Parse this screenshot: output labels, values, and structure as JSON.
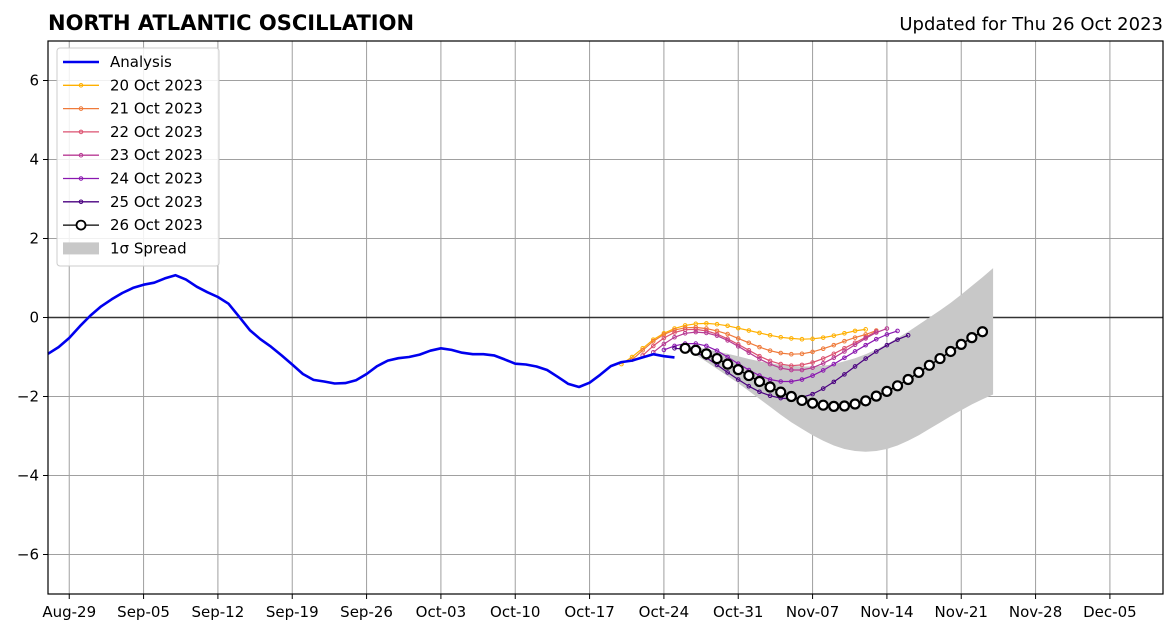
{
  "chart_data": {
    "type": "line",
    "title": "NORTH ATLANTIC OSCILLATION",
    "subtitle": "Updated for Thu 26 Oct 2023",
    "xlabel": "",
    "ylabel": "",
    "x_range": [
      "2023-08-27",
      "2023-12-10"
    ],
    "ylim": [
      -7,
      7
    ],
    "grid": true,
    "legend_position": "top-left",
    "x_tick_labels": [
      "Aug-29",
      "Sep-05",
      "Sep-12",
      "Sep-19",
      "Sep-26",
      "Oct-03",
      "Oct-10",
      "Oct-17",
      "Oct-24",
      "Oct-31",
      "Nov-07",
      "Nov-14",
      "Nov-21",
      "Nov-28",
      "Dec-05"
    ],
    "x_tick_dates": [
      "2023-08-29",
      "2023-09-05",
      "2023-09-12",
      "2023-09-19",
      "2023-09-26",
      "2023-10-03",
      "2023-10-10",
      "2023-10-17",
      "2023-10-24",
      "2023-10-31",
      "2023-11-07",
      "2023-11-14",
      "2023-11-21",
      "2023-11-28",
      "2023-12-05"
    ],
    "y_ticks": [
      -6,
      -4,
      -2,
      0,
      2,
      4,
      6
    ],
    "y_tick_labels": [
      "−6",
      "−4",
      "−2",
      "0",
      "2",
      "4",
      "6"
    ],
    "analysis": {
      "name": "Analysis",
      "color": "#0000ee",
      "start": "2023-08-27",
      "values": [
        -0.92,
        -0.75,
        -0.52,
        -0.22,
        0.05,
        0.28,
        0.46,
        0.62,
        0.75,
        0.83,
        0.88,
        0.99,
        1.07,
        0.96,
        0.78,
        0.64,
        0.52,
        0.35,
        0.02,
        -0.32,
        -0.55,
        -0.74,
        -0.96,
        -1.19,
        -1.43,
        -1.58,
        -1.62,
        -1.67,
        -1.66,
        -1.59,
        -1.43,
        -1.23,
        -1.09,
        -1.03,
        -1.0,
        -0.94,
        -0.84,
        -0.78,
        -0.82,
        -0.89,
        -0.93,
        -0.93,
        -0.96,
        -1.06,
        -1.17,
        -1.19,
        -1.24,
        -1.33,
        -1.5,
        -1.68,
        -1.76,
        -1.65,
        -1.45,
        -1.23,
        -1.13,
        -1.09,
        -1.01,
        -0.93,
        -0.98,
        -1.01
      ]
    },
    "forecasts": [
      {
        "name": "20 Oct 2023",
        "color": "#ffb000",
        "start": "2023-10-20",
        "values": [
          -1.18,
          -1.0,
          -0.78,
          -0.56,
          -0.4,
          -0.28,
          -0.2,
          -0.16,
          -0.15,
          -0.17,
          -0.21,
          -0.27,
          -0.33,
          -0.39,
          -0.45,
          -0.5,
          -0.53,
          -0.55,
          -0.54,
          -0.51,
          -0.46,
          -0.4,
          -0.34,
          -0.3
        ]
      },
      {
        "name": "21 Oct 2023",
        "color": "#ef7a3a",
        "start": "2023-10-21",
        "values": [
          -1.07,
          -0.83,
          -0.6,
          -0.43,
          -0.32,
          -0.26,
          -0.25,
          -0.28,
          -0.34,
          -0.42,
          -0.53,
          -0.64,
          -0.75,
          -0.84,
          -0.9,
          -0.93,
          -0.92,
          -0.87,
          -0.79,
          -0.7,
          -0.6,
          -0.51,
          -0.43,
          -0.33
        ]
      },
      {
        "name": "22 Oct 2023",
        "color": "#dc5270",
        "start": "2023-10-22",
        "values": [
          -0.96,
          -0.72,
          -0.52,
          -0.38,
          -0.31,
          -0.3,
          -0.34,
          -0.42,
          -0.54,
          -0.68,
          -0.83,
          -0.98,
          -1.1,
          -1.18,
          -1.22,
          -1.2,
          -1.14,
          -1.04,
          -0.92,
          -0.78,
          -0.64,
          -0.5,
          -0.35
        ]
      },
      {
        "name": "23 Oct 2023",
        "color": "#b83b94",
        "start": "2023-10-23",
        "values": [
          -0.88,
          -0.67,
          -0.5,
          -0.4,
          -0.37,
          -0.39,
          -0.46,
          -0.58,
          -0.73,
          -0.89,
          -1.05,
          -1.18,
          -1.28,
          -1.33,
          -1.33,
          -1.27,
          -1.16,
          -1.02,
          -0.86,
          -0.69,
          -0.53,
          -0.38,
          -0.28
        ]
      },
      {
        "name": "24 Oct 2023",
        "color": "#8a18b0",
        "start": "2023-10-24",
        "values": [
          -0.82,
          -0.72,
          -0.66,
          -0.66,
          -0.72,
          -0.84,
          -1.0,
          -1.17,
          -1.33,
          -1.47,
          -1.57,
          -1.62,
          -1.62,
          -1.57,
          -1.47,
          -1.34,
          -1.18,
          -1.02,
          -0.86,
          -0.7,
          -0.55,
          -0.43,
          -0.34
        ]
      },
      {
        "name": "25 Oct 2023",
        "color": "#4a0080",
        "start": "2023-10-25",
        "values": [
          -0.78,
          -0.8,
          -0.88,
          -1.02,
          -1.2,
          -1.39,
          -1.57,
          -1.74,
          -1.88,
          -1.98,
          -2.04,
          -2.06,
          -2.02,
          -1.94,
          -1.8,
          -1.63,
          -1.44,
          -1.24,
          -1.04,
          -0.86,
          -0.7,
          -0.56,
          -0.45
        ]
      },
      {
        "name": "26 Oct 2023",
        "color": "#000000",
        "start": "2023-10-26",
        "values": [
          -0.78,
          -0.83,
          -0.92,
          -1.04,
          -1.18,
          -1.32,
          -1.47,
          -1.62,
          -1.76,
          -1.89,
          -2.0,
          -2.1,
          -2.17,
          -2.22,
          -2.25,
          -2.24,
          -2.19,
          -2.11,
          -1.99,
          -1.87,
          -1.73,
          -1.57,
          -1.39,
          -1.21,
          -1.04,
          -0.86,
          -0.68,
          -0.51,
          -0.36
        ]
      }
    ],
    "spread": {
      "name": "1σ Spread",
      "color": "#c8c8c8",
      "start": "2023-10-26",
      "upper": [
        -0.78,
        -0.75,
        -0.8,
        -0.86,
        -0.92,
        -0.98,
        -1.05,
        -1.11,
        -1.16,
        -1.2,
        -1.22,
        -1.24,
        -1.24,
        -1.22,
        -1.18,
        -1.11,
        -1.03,
        -0.93,
        -0.81,
        -0.67,
        -0.52,
        -0.36,
        -0.18,
        0.0,
        0.18,
        0.37,
        0.58,
        0.8,
        1.02,
        1.25
      ],
      "lower": [
        -0.78,
        -0.95,
        -1.12,
        -1.3,
        -1.48,
        -1.66,
        -1.86,
        -2.06,
        -2.26,
        -2.46,
        -2.65,
        -2.82,
        -2.98,
        -3.12,
        -3.24,
        -3.33,
        -3.38,
        -3.4,
        -3.38,
        -3.33,
        -3.24,
        -3.12,
        -2.98,
        -2.82,
        -2.66,
        -2.5,
        -2.35,
        -2.2,
        -2.07,
        -1.95
      ]
    }
  }
}
